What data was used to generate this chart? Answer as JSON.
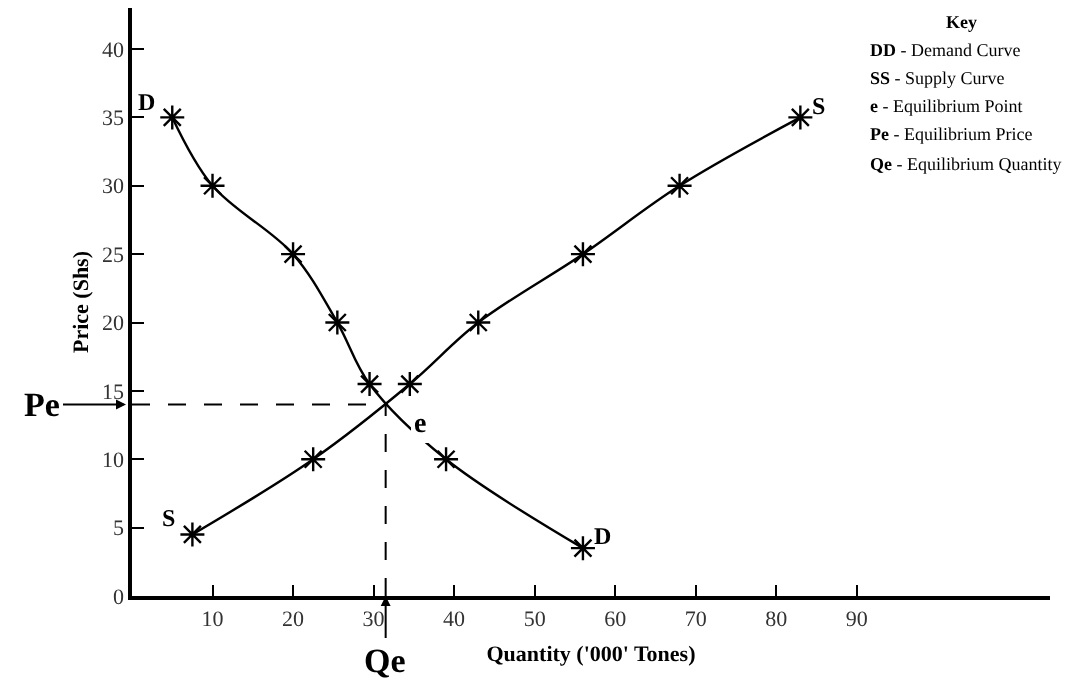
{
  "chart_data": {
    "type": "line",
    "xlabel": "Quantity ('000' Tones)",
    "ylabel": "Price (Shs)",
    "xlim": [
      0,
      114
    ],
    "ylim": [
      0,
      43
    ],
    "xticks": [
      10,
      20,
      30,
      40,
      50,
      60,
      70,
      80,
      90
    ],
    "yticks": [
      0,
      5,
      10,
      15,
      20,
      25,
      30,
      35,
      40
    ],
    "legend": false,
    "marker": "cross",
    "line_style": "solid",
    "series": [
      {
        "name": "D",
        "color": "#000000",
        "x": [
          5,
          10,
          20,
          25.5,
          29.5,
          39,
          56
        ],
        "values": [
          35,
          30,
          25,
          20,
          15.5,
          10,
          3.5
        ]
      },
      {
        "name": "S",
        "color": "#000000",
        "x": [
          7.5,
          22.5,
          34.5,
          43,
          56,
          68,
          83
        ],
        "values": [
          4.5,
          10,
          15.5,
          20,
          25,
          30,
          35
        ]
      }
    ],
    "ref_lines": [
      {
        "axis": "y",
        "value": 14,
        "label": "Pe",
        "line_style": "dashed",
        "color": "#000000"
      },
      {
        "axis": "x",
        "value": 31.5,
        "label": "Qe",
        "line_style": "dashed",
        "color": "#000000"
      }
    ],
    "annotations": [
      {
        "text": "e",
        "x": 31.5,
        "y": 14
      },
      "Key",
      "DD - Demand Curve",
      "SS - Supply Curve",
      "e - Equilibrium Point",
      "Pe - Equilibrium Price",
      "Qe - Equilibrium Quantity"
    ]
  }
}
